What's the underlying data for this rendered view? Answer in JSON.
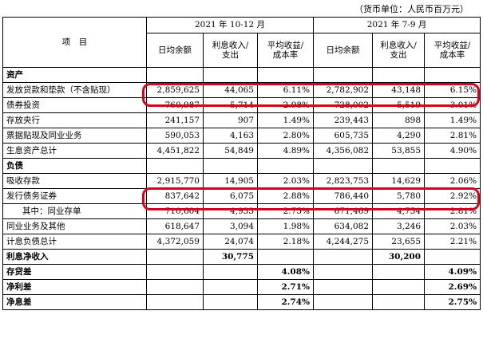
{
  "unit_note": "（货币单位：人民币百万元）",
  "header": {
    "item": "项　目",
    "period_q4": "2021 年 10-12 月",
    "period_q3": "2021 年 7-9 月",
    "col_avg": "日均余额",
    "col_interest_1": "利息收入/",
    "col_interest_2": "支出",
    "col_yield_1": "平均收益/",
    "col_yield_2": "成本率"
  },
  "sections": {
    "assets": "资产",
    "liabilities": "负债"
  },
  "asset_rows": [
    {
      "label": "发放贷款和垫款（不含贴现）",
      "q4_avg": "2,859,625",
      "q4_int": "44,065",
      "q4_rate": "6.11%",
      "q3_avg": "2,782,902",
      "q3_int": "43,148",
      "q3_rate": "6.15%"
    },
    {
      "label": "债券投资",
      "q4_avg": "760,987",
      "q4_int": "5,714",
      "q4_rate": "2.98%",
      "q3_avg": "728,002",
      "q3_int": "5,519",
      "q3_rate": "3.01%"
    },
    {
      "label": "存放央行",
      "q4_avg": "241,157",
      "q4_int": "907",
      "q4_rate": "1.49%",
      "q3_avg": "239,443",
      "q3_int": "898",
      "q3_rate": "1.49%"
    },
    {
      "label": "票据贴现及同业业务",
      "q4_avg": "590,053",
      "q4_int": "4,163",
      "q4_rate": "2.80%",
      "q3_avg": "605,735",
      "q3_int": "4,290",
      "q3_rate": "2.81%"
    },
    {
      "label": "生息资产总计",
      "q4_avg": "4,451,822",
      "q4_int": "54,849",
      "q4_rate": "4.89%",
      "q3_avg": "4,356,082",
      "q3_int": "53,855",
      "q3_rate": "4.90%"
    }
  ],
  "liability_rows": [
    {
      "label": "吸收存款",
      "q4_avg": "2,915,770",
      "q4_int": "14,905",
      "q4_rate": "2.03%",
      "q3_avg": "2,823,753",
      "q3_int": "14,629",
      "q3_rate": "2.06%"
    },
    {
      "label": "发行债务证券",
      "q4_avg": "837,642",
      "q4_int": "6,075",
      "q4_rate": "2.88%",
      "q3_avg": "786,440",
      "q3_int": "5,780",
      "q3_rate": "2.92%"
    },
    {
      "label": "其中：同业存单",
      "q4_avg": "710,604",
      "q4_int": "4,933",
      "q4_rate": "2.75%",
      "q3_avg": "671,469",
      "q3_int": "4,754",
      "q3_rate": "2.81%"
    },
    {
      "label": "同业业务及其他",
      "q4_avg": "618,647",
      "q4_int": "3,094",
      "q4_rate": "1.98%",
      "q3_avg": "634,082",
      "q3_int": "3,246",
      "q3_rate": "2.03%"
    },
    {
      "label": "计息负债总计",
      "q4_avg": "4,372,059",
      "q4_int": "24,074",
      "q4_rate": "2.18%",
      "q3_avg": "4,244,275",
      "q3_int": "23,655",
      "q3_rate": "2.21%"
    }
  ],
  "summary": {
    "net_interest_income": {
      "label": "利息净收入",
      "q4": "30,775",
      "q3": "30,200"
    },
    "spread": {
      "label": "存贷差",
      "q4": "4.08%",
      "q3": "4.09%"
    },
    "net_interest_spread": {
      "label": "净利差",
      "q4": "2.71%",
      "q3": "2.69%"
    },
    "net_interest_margin": {
      "label": "净息差",
      "q4": "2.74%",
      "q3": "2.75%"
    }
  },
  "highlight_color": "#d9001b"
}
